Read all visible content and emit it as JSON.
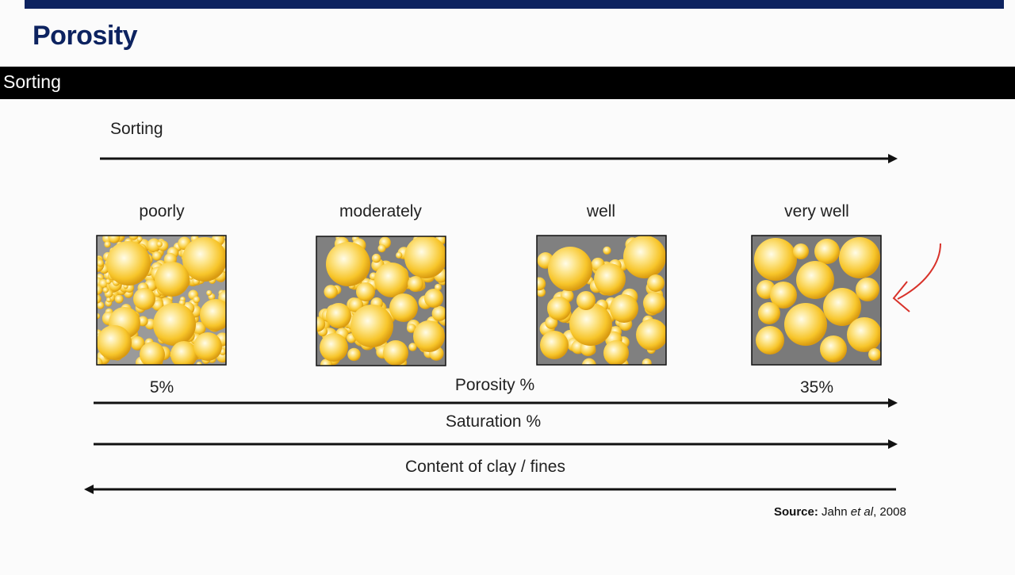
{
  "header": {
    "title": "Porosity"
  },
  "section": {
    "label": "Sorting"
  },
  "diagram": {
    "top_axis_label": "Sorting",
    "categories": [
      "poorly",
      "moderately",
      "well",
      "very well"
    ],
    "porosity_min": "5%",
    "porosity_max": "35%",
    "porosity_label": "Porosity %",
    "saturation_label": "Saturation %",
    "clay_label": "Content of clay / fines"
  },
  "source": {
    "prefix": "Source:",
    "author": "Jahn",
    "etal": "et al",
    "year": ", 2008"
  },
  "colors": {
    "navy": "#0d2360",
    "grain": "#f7c52a",
    "pore": "#808080",
    "annotation": "#d8322a"
  }
}
